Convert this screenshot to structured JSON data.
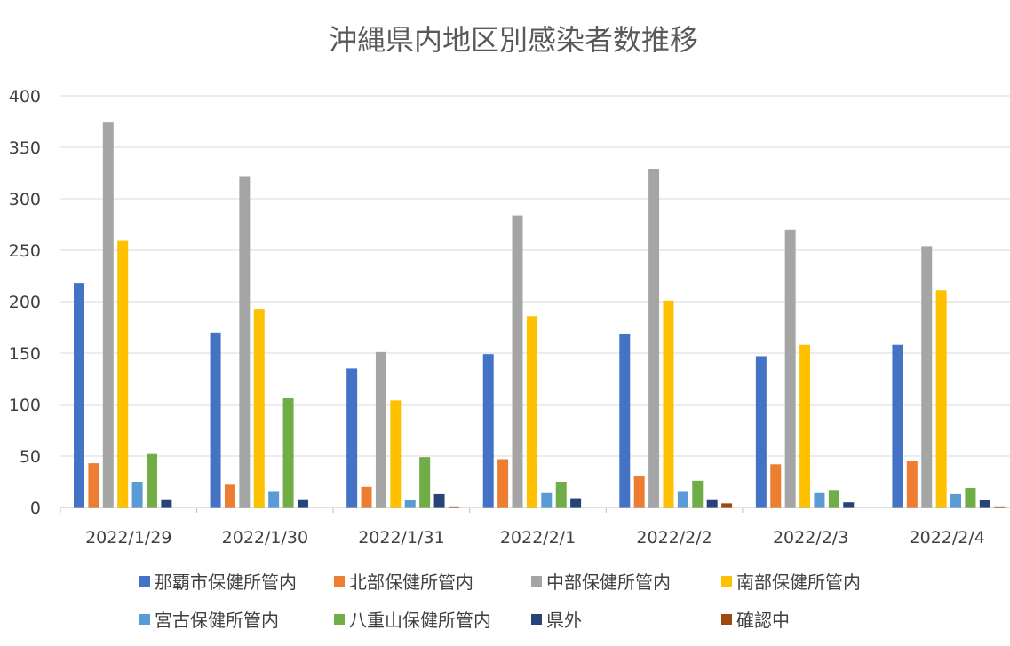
{
  "chart_data": {
    "type": "bar",
    "title": "沖縄県内地区別感染者数推移",
    "xlabel": "",
    "ylabel": "",
    "categories": [
      "2022/1/29",
      "2022/1/30",
      "2022/1/31",
      "2022/2/1",
      "2022/2/2",
      "2022/2/3",
      "2022/2/4"
    ],
    "ylim": [
      0,
      400
    ],
    "yticks": [
      "0",
      "50",
      "100",
      "150",
      "200",
      "250",
      "300",
      "350",
      "400"
    ],
    "grid": true,
    "legend_position": "bottom",
    "series": [
      {
        "name": "那覇市保健所管内",
        "color": "#4472C4",
        "values": [
          218,
          170,
          135,
          149,
          169,
          147,
          158
        ]
      },
      {
        "name": "北部保健所管内",
        "color": "#ED7D31",
        "values": [
          43,
          23,
          20,
          47,
          31,
          42,
          45
        ]
      },
      {
        "name": "中部保健所管内",
        "color": "#A5A5A5",
        "values": [
          374,
          322,
          151,
          284,
          329,
          270,
          254
        ]
      },
      {
        "name": "南部保健所管内",
        "color": "#FFC000",
        "values": [
          259,
          193,
          104,
          186,
          201,
          158,
          211
        ]
      },
      {
        "name": "宮古保健所管内",
        "color": "#5B9BD5",
        "values": [
          25,
          16,
          7,
          14,
          16,
          14,
          13
        ]
      },
      {
        "name": "八重山保健所管内",
        "color": "#70AD47",
        "values": [
          52,
          106,
          49,
          25,
          26,
          17,
          19
        ]
      },
      {
        "name": "県外",
        "color": "#264478",
        "values": [
          8,
          8,
          13,
          9,
          8,
          5,
          7
        ]
      },
      {
        "name": "確認中",
        "color": "#9E480E",
        "values": [
          0,
          0,
          1,
          0,
          4,
          0,
          1
        ]
      }
    ]
  }
}
